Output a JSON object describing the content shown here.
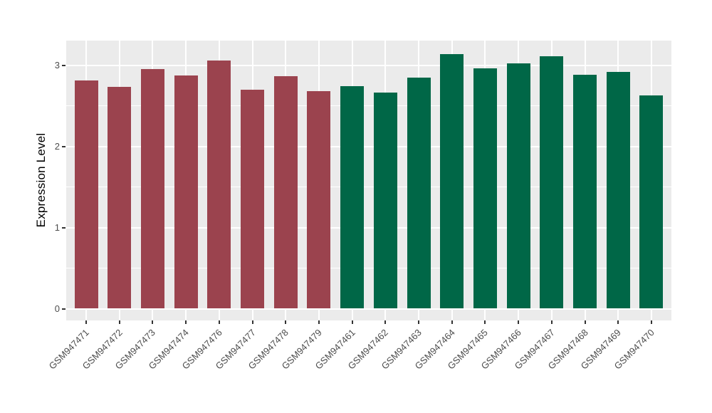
{
  "chart_data": {
    "type": "bar",
    "title": "",
    "xlabel": "",
    "ylabel": "Expression Level",
    "categories": [
      "GSM947471",
      "GSM947472",
      "GSM947473",
      "GSM947474",
      "GSM947476",
      "GSM947477",
      "GSM947478",
      "GSM947479",
      "GSM947461",
      "GSM947462",
      "GSM947463",
      "GSM947464",
      "GSM947465",
      "GSM947466",
      "GSM947467",
      "GSM947468",
      "GSM947469",
      "GSM947470"
    ],
    "values": [
      2.81,
      2.73,
      2.95,
      2.87,
      3.06,
      2.7,
      2.86,
      2.68,
      2.74,
      2.66,
      2.85,
      3.14,
      2.96,
      3.02,
      3.11,
      2.88,
      2.92,
      2.63
    ],
    "bar_colors": [
      "#9B434E",
      "#9B434E",
      "#9B434E",
      "#9B434E",
      "#9B434E",
      "#9B434E",
      "#9B434E",
      "#9B434E",
      "#006747",
      "#006747",
      "#006747",
      "#006747",
      "#006747",
      "#006747",
      "#006747",
      "#006747",
      "#006747",
      "#006747"
    ],
    "group_colors": {
      "left_group": "#9B434E",
      "right_group": "#006747"
    },
    "yticks": [
      0,
      1,
      2,
      3
    ],
    "ytick_minor": [
      0.5,
      1.5,
      2.5
    ],
    "ylim": [
      -0.15,
      3.3
    ],
    "grid": "white major and minor lines on grey panel",
    "legend": "none",
    "panel_background": "#EBEBEB"
  },
  "style": {
    "panel_bg": "#EBEBEB",
    "grid_color": "#FFFFFF",
    "axis_text_color": "#4D4D4D",
    "tick_mark_color": "#333333",
    "axis_title_color": "#000000"
  }
}
